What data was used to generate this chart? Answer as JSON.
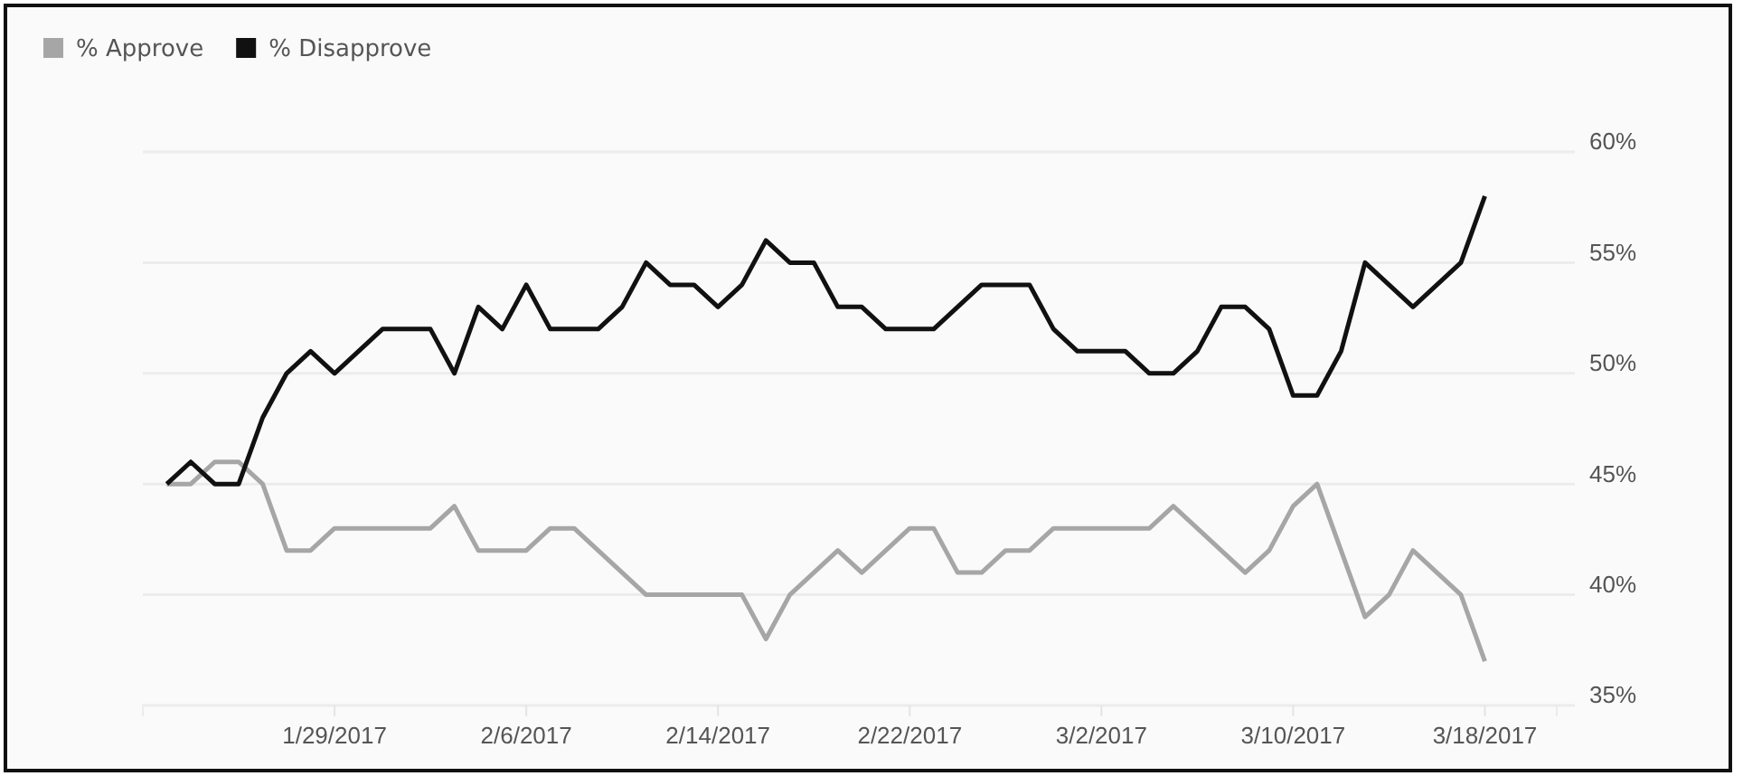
{
  "chart_data": {
    "type": "line",
    "x": [
      "2017-01-22",
      "2017-01-23",
      "2017-01-24",
      "2017-01-25",
      "2017-01-26",
      "2017-01-27",
      "2017-01-28",
      "2017-01-29",
      "2017-01-30",
      "2017-01-31",
      "2017-02-01",
      "2017-02-02",
      "2017-02-03",
      "2017-02-04",
      "2017-02-05",
      "2017-02-06",
      "2017-02-07",
      "2017-02-08",
      "2017-02-09",
      "2017-02-10",
      "2017-02-11",
      "2017-02-12",
      "2017-02-13",
      "2017-02-14",
      "2017-02-15",
      "2017-02-16",
      "2017-02-17",
      "2017-02-18",
      "2017-02-19",
      "2017-02-20",
      "2017-02-21",
      "2017-02-22",
      "2017-02-23",
      "2017-02-24",
      "2017-02-25",
      "2017-02-26",
      "2017-02-27",
      "2017-02-28",
      "2017-03-01",
      "2017-03-02",
      "2017-03-03",
      "2017-03-04",
      "2017-03-05",
      "2017-03-06",
      "2017-03-07",
      "2017-03-08",
      "2017-03-09",
      "2017-03-10",
      "2017-03-11",
      "2017-03-12",
      "2017-03-13",
      "2017-03-14",
      "2017-03-15",
      "2017-03-16",
      "2017-03-17",
      "2017-03-18"
    ],
    "series": [
      {
        "name": "% Approve",
        "color": "#a6a6a6",
        "values": [
          45,
          45,
          46,
          46,
          45,
          42,
          42,
          43,
          43,
          43,
          43,
          43,
          44,
          42,
          42,
          42,
          43,
          43,
          42,
          41,
          40,
          40,
          40,
          40,
          40,
          38,
          40,
          41,
          42,
          41,
          42,
          43,
          43,
          41,
          41,
          42,
          42,
          43,
          43,
          43,
          43,
          43,
          44,
          43,
          42,
          41,
          42,
          44,
          45,
          42,
          39,
          40,
          42,
          41,
          40,
          37
        ]
      },
      {
        "name": "% Disapprove",
        "color": "#111111",
        "values": [
          45,
          46,
          45,
          45,
          48,
          50,
          51,
          50,
          51,
          52,
          52,
          52,
          50,
          53,
          52,
          54,
          52,
          52,
          52,
          53,
          55,
          54,
          54,
          53,
          54,
          56,
          55,
          55,
          53,
          53,
          52,
          52,
          52,
          53,
          54,
          54,
          54,
          52,
          51,
          51,
          51,
          50,
          50,
          51,
          53,
          53,
          52,
          49,
          49,
          51,
          55,
          54,
          53,
          54,
          55,
          58
        ]
      }
    ],
    "xlim": [
      "2017-01-21",
      "2017-03-21"
    ],
    "xticks": [
      {
        "value": "2017-01-29",
        "label": "1/29/2017"
      },
      {
        "value": "2017-02-06",
        "label": "2/6/2017"
      },
      {
        "value": "2017-02-14",
        "label": "2/14/2017"
      },
      {
        "value": "2017-02-22",
        "label": "2/22/2017"
      },
      {
        "value": "2017-03-02",
        "label": "3/2/2017"
      },
      {
        "value": "2017-03-10",
        "label": "3/10/2017"
      },
      {
        "value": "2017-03-18",
        "label": "3/18/2017"
      }
    ],
    "ylim": [
      35,
      60
    ],
    "yticks": [
      {
        "value": 35,
        "label": "35%"
      },
      {
        "value": 40,
        "label": "40%"
      },
      {
        "value": 45,
        "label": "45%"
      },
      {
        "value": 50,
        "label": "50%"
      },
      {
        "value": 55,
        "label": "55%"
      },
      {
        "value": 60,
        "label": "60%"
      }
    ],
    "grid": "y",
    "legend": "top left",
    "marker": "none",
    "line_style": "solid"
  }
}
